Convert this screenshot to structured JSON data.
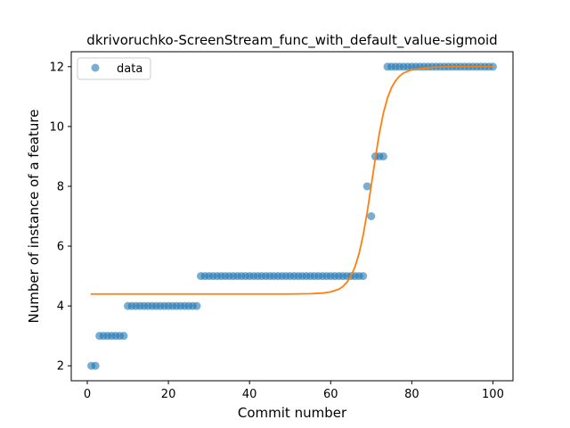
{
  "chart_data": {
    "type": "scatter",
    "title": "dkrivoruchko-ScreenStream_func_with_default_value-sigmoid",
    "xlabel": "Commit number",
    "ylabel": "Number of instance of a feature",
    "xlim": [
      -3.95,
      104.95
    ],
    "ylim": [
      1.5,
      12.5
    ],
    "xticks": [
      0,
      20,
      40,
      60,
      80,
      100
    ],
    "yticks": [
      2,
      4,
      6,
      8,
      10,
      12
    ],
    "legend": {
      "position": "top-left",
      "entries": [
        "data"
      ]
    },
    "grid": false,
    "colors": {
      "data": "#1f77b4",
      "fit": "#ff7f0e"
    },
    "series": [
      {
        "name": "data",
        "kind": "scatter",
        "x": [
          1,
          2,
          3,
          4,
          5,
          6,
          7,
          8,
          9,
          10,
          11,
          12,
          13,
          14,
          15,
          16,
          17,
          18,
          19,
          20,
          21,
          22,
          23,
          24,
          25,
          26,
          27,
          28,
          29,
          30,
          31,
          32,
          33,
          34,
          35,
          36,
          37,
          38,
          39,
          40,
          41,
          42,
          43,
          44,
          45,
          46,
          47,
          48,
          49,
          50,
          51,
          52,
          53,
          54,
          55,
          56,
          57,
          58,
          59,
          60,
          61,
          62,
          63,
          64,
          65,
          66,
          67,
          68,
          69,
          70,
          71,
          72,
          73,
          74,
          75,
          76,
          77,
          78,
          79,
          80,
          81,
          82,
          83,
          84,
          85,
          86,
          87,
          88,
          89,
          90,
          91,
          92,
          93,
          94,
          95,
          96,
          97,
          98,
          99,
          100
        ],
        "y": [
          2,
          2,
          3,
          3,
          3,
          3,
          3,
          3,
          3,
          4,
          4,
          4,
          4,
          4,
          4,
          4,
          4,
          4,
          4,
          4,
          4,
          4,
          4,
          4,
          4,
          4,
          4,
          5,
          5,
          5,
          5,
          5,
          5,
          5,
          5,
          5,
          5,
          5,
          5,
          5,
          5,
          5,
          5,
          5,
          5,
          5,
          5,
          5,
          5,
          5,
          5,
          5,
          5,
          5,
          5,
          5,
          5,
          5,
          5,
          5,
          5,
          5,
          5,
          5,
          5,
          5,
          5,
          5,
          8,
          7,
          9,
          9,
          9,
          12,
          12,
          12,
          12,
          12,
          12,
          12,
          12,
          12,
          12,
          12,
          12,
          12,
          12,
          12,
          12,
          12,
          12,
          12,
          12,
          12,
          12,
          12,
          12,
          12,
          12,
          12
        ]
      },
      {
        "kind": "line",
        "x": [
          1,
          10,
          20,
          30,
          40,
          50,
          55,
          58,
          60,
          62,
          63,
          64,
          65,
          66,
          67,
          68,
          69,
          70,
          71,
          72,
          73,
          74,
          75,
          76,
          77,
          78,
          80,
          85,
          90,
          100
        ],
        "y": [
          4.4,
          4.4,
          4.4,
          4.4,
          4.4,
          4.4,
          4.41,
          4.43,
          4.47,
          4.56,
          4.65,
          4.79,
          5.0,
          5.31,
          5.75,
          6.36,
          7.13,
          8.02,
          8.93,
          9.77,
          10.45,
          10.95,
          11.3,
          11.53,
          11.69,
          11.79,
          11.9,
          11.98,
          12.0,
          12.0
        ]
      }
    ]
  }
}
